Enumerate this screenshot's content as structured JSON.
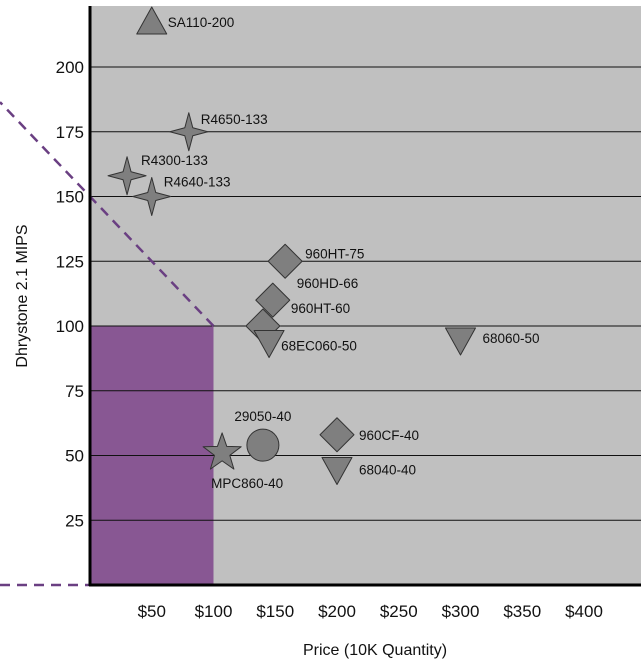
{
  "chart_data": {
    "type": "scatter",
    "xlabel": "Price (10K Quantity)",
    "ylabel": "Dhrystone 2.1 MIPS",
    "xlim": [
      0,
      450
    ],
    "ylim": [
      0,
      225
    ],
    "x_ticks": [
      "$50",
      "$100",
      "$150",
      "$200",
      "$250",
      "$300",
      "$350",
      "$400"
    ],
    "x_tick_values": [
      50,
      100,
      150,
      200,
      250,
      300,
      350,
      400
    ],
    "y_ticks": [
      "25",
      "50",
      "75",
      "100",
      "125",
      "150",
      "175",
      "200"
    ],
    "y_tick_values": [
      25,
      50,
      75,
      100,
      125,
      150,
      175,
      200
    ],
    "grid": "horizontal",
    "colors": {
      "plot_background": "#c0c0c0",
      "marker_fill": "#7f7f7f",
      "highlight_region": "#885793",
      "dashed_line": "#6a3f82"
    },
    "highlight_region": {
      "x": [
        0,
        100
      ],
      "y": [
        0,
        100
      ]
    },
    "dashed_line": {
      "x_intercept": 0,
      "y_intercept": 150,
      "through": [
        100,
        100
      ]
    },
    "points": [
      {
        "label": "SA110-200",
        "x": 50,
        "y": 217,
        "marker": "triangle-up"
      },
      {
        "label": "R4650-133",
        "x": 80,
        "y": 175,
        "marker": "star4"
      },
      {
        "label": "R4300-133",
        "x": 30,
        "y": 158,
        "marker": "star4"
      },
      {
        "label": "R4640-133",
        "x": 50,
        "y": 150,
        "marker": "star4"
      },
      {
        "label": "960HT-75",
        "x": 158,
        "y": 125,
        "marker": "diamond"
      },
      {
        "label": "960HD-66",
        "x": 148,
        "y": 110,
        "marker": "diamond"
      },
      {
        "label": "960HT-60",
        "x": 140,
        "y": 100,
        "marker": "diamond"
      },
      {
        "label": "68EC060-50",
        "x": 145,
        "y": 94,
        "marker": "triangle-down"
      },
      {
        "label": "68060-50",
        "x": 300,
        "y": 95,
        "marker": "triangle-down"
      },
      {
        "label": "29050-40",
        "x": 140,
        "y": 54,
        "marker": "circle"
      },
      {
        "label": "960CF-40",
        "x": 200,
        "y": 58,
        "marker": "diamond"
      },
      {
        "label": "68040-40",
        "x": 200,
        "y": 45,
        "marker": "triangle-down"
      },
      {
        "label": "MPC860-40",
        "x": 107,
        "y": 51,
        "marker": "star5"
      }
    ]
  }
}
